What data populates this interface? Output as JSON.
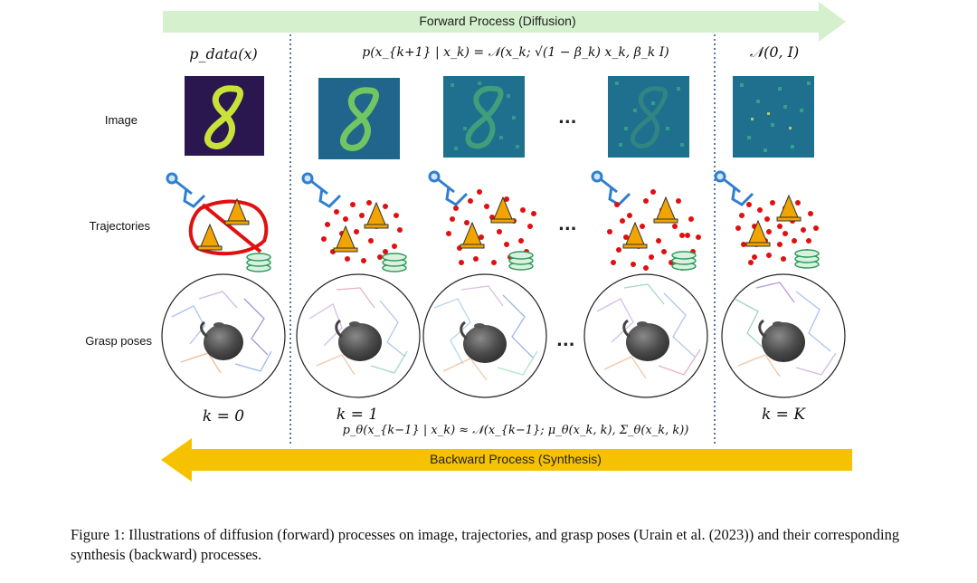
{
  "forward_label": "Forward Process (Diffusion)",
  "backward_label": "Backward Process (Synthesis)",
  "row_labels": {
    "image": "Image",
    "trajectories": "Trajectories",
    "grasp": "Grasp poses"
  },
  "equations": {
    "pdata": "p_data(x)",
    "forward_kernel": "p(x_{k+1} | x_k) = 𝒩(x_k; √(1 − β_k) x_k, β_k I)",
    "prior": "𝒩(0, I)",
    "reverse_kernel": "p_θ(x_{k−1} | x_k) ≈ 𝒩(x_{k−1}; μ_θ(x_k, k), Σ_θ(x_k, k))"
  },
  "step_labels": {
    "k0": "k = 0",
    "k1": "k = 1",
    "kK": "k = K"
  },
  "ellipsis": "...",
  "caption": "Figure 1: Illustrations of diffusion (forward) processes on image, trajectories, and grasp poses (Urain et al. (2023)) and their corresponding synthesis (backward) processes.",
  "colors": {
    "forward_arrow": "#d4f0cc",
    "backward_arrow": "#f6c200",
    "trajectory_points": "#e01010",
    "image_bg_clean": "#2a1750",
    "image_digit": "#c8e23a",
    "noise_bg": "#1f6f8e"
  }
}
